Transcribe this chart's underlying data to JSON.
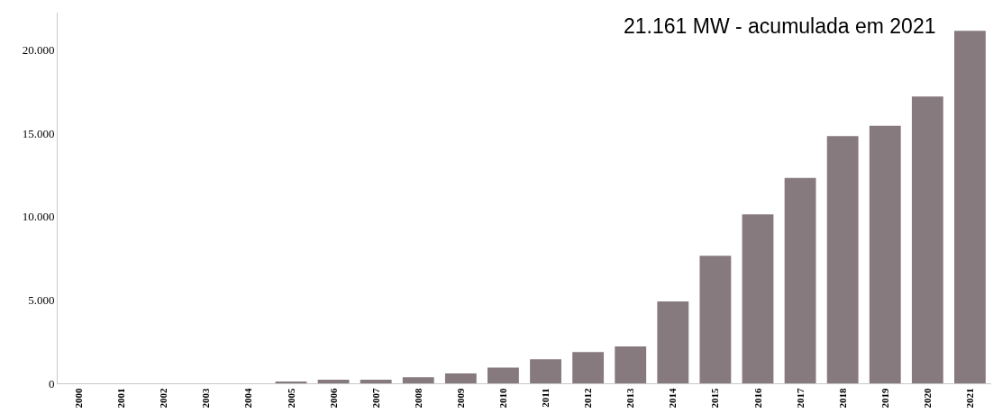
{
  "chart_data": {
    "type": "bar",
    "categories": [
      "2000",
      "2001",
      "2002",
      "2003",
      "2004",
      "2005",
      "2006",
      "2007",
      "2008",
      "2009",
      "2010",
      "2011",
      "2012",
      "2013",
      "2014",
      "2015",
      "2016",
      "2017",
      "2018",
      "2019",
      "2020",
      "2021"
    ],
    "values": [
      0,
      0,
      0,
      0,
      0,
      60,
      210,
      210,
      370,
      600,
      950,
      1450,
      1880,
      2210,
      4920,
      7660,
      10140,
      12320,
      14840,
      15460,
      17220,
      21161
    ],
    "color": "#877a7e",
    "ylim": [
      0,
      22250
    ],
    "yticks": [
      0,
      {
        "value": 5000,
        "label": "5.000"
      },
      {
        "value": 10000,
        "label": "10.000"
      },
      {
        "value": 15000,
        "label": "15.000"
      },
      {
        "value": 20000,
        "label": "20.000"
      }
    ],
    "annotations": [
      "21.161 MW - acumulada em 2021"
    ]
  }
}
